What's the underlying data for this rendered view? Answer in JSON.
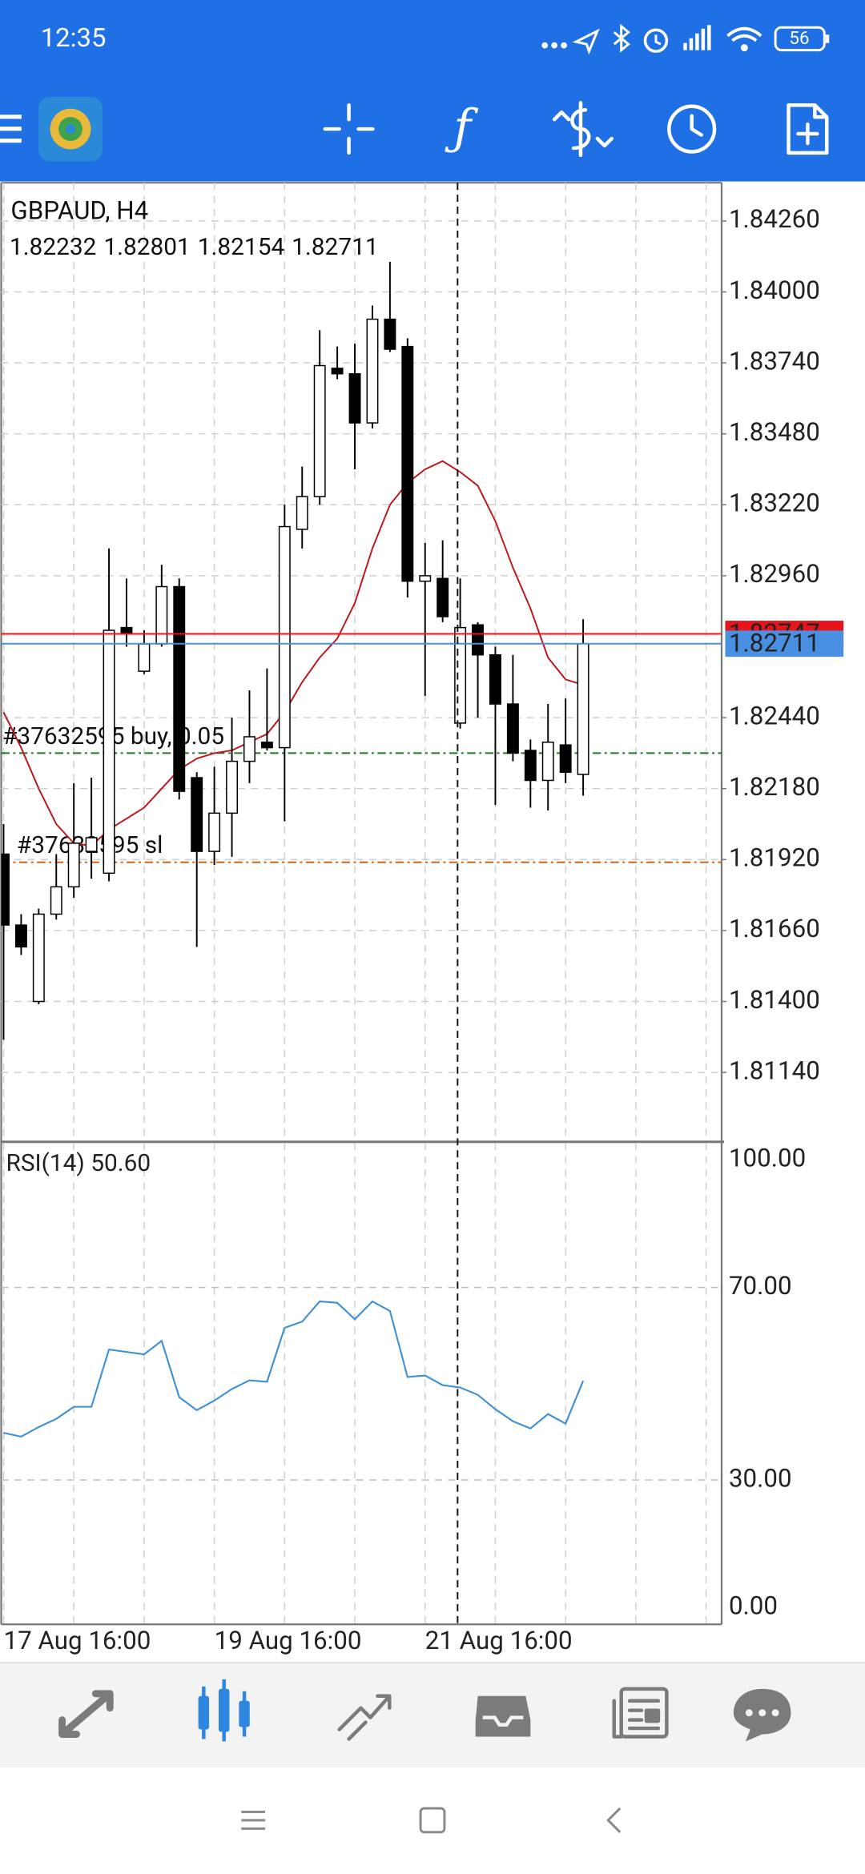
{
  "status_bar": {
    "time": "12:35",
    "battery": "56"
  },
  "chart_data": [
    {
      "type": "candlestick",
      "title": "GBPAUD, H4",
      "categories": [
        "17 Aug 16:00",
        null,
        null,
        null,
        null,
        null,
        null,
        null,
        null,
        null,
        null,
        null,
        "19 Aug 16:00",
        null,
        null,
        null,
        null,
        null,
        null,
        null,
        null,
        null,
        null,
        null,
        "21 Aug 16:00",
        null,
        null,
        null,
        null,
        null,
        null,
        null,
        null,
        null
      ],
      "open": [
        1.8194,
        1.8168,
        1.814,
        1.8172,
        1.8182,
        1.8195,
        1.8187,
        1.8277,
        1.8261,
        1.8271,
        1.8292,
        1.8222,
        1.8195,
        1.8209,
        1.8228,
        1.8235,
        1.8233,
        1.8313,
        1.8325,
        1.8372,
        1.837,
        1.8352,
        1.839,
        1.838,
        1.8294,
        1.8295,
        1.8242,
        1.8278,
        1.8267,
        1.8249,
        1.8232,
        1.8221,
        1.8234,
        1.82232
      ],
      "high": [
        1.8205,
        1.8172,
        1.8174,
        1.8194,
        1.822,
        1.8222,
        1.8306,
        1.8295,
        1.8276,
        1.83,
        1.8295,
        1.8224,
        1.8226,
        1.8244,
        1.8254,
        1.8262,
        1.8322,
        1.8336,
        1.8386,
        1.838,
        1.8381,
        1.8395,
        1.8411,
        1.8383,
        1.8308,
        1.8309,
        1.8295,
        1.8279,
        1.827,
        1.8267,
        1.8236,
        1.8249,
        1.8251,
        1.82801
      ],
      "low": [
        1.8126,
        1.8157,
        1.8139,
        1.817,
        1.8178,
        1.8185,
        1.8184,
        1.827,
        1.826,
        1.827,
        1.8214,
        1.816,
        1.819,
        1.8193,
        1.822,
        1.8232,
        1.8206,
        1.8306,
        1.8322,
        1.8368,
        1.8335,
        1.835,
        1.8378,
        1.8288,
        1.8252,
        1.8279,
        1.824,
        1.8244,
        1.8212,
        1.8228,
        1.8211,
        1.821,
        1.822,
        1.82154
      ],
      "close": [
        1.8168,
        1.816,
        1.8172,
        1.8182,
        1.8198,
        1.82,
        1.8276,
        1.8275,
        1.8271,
        1.8292,
        1.8217,
        1.8195,
        1.8209,
        1.8228,
        1.8237,
        1.8233,
        1.8314,
        1.8325,
        1.8373,
        1.837,
        1.8352,
        1.839,
        1.8379,
        1.8294,
        1.8296,
        1.8281,
        1.8277,
        1.8267,
        1.8249,
        1.8231,
        1.8221,
        1.8235,
        1.8224,
        1.82711
      ],
      "up_color": "#ffffff",
      "down_color": "#000000",
      "moving_average": {
        "color": "#c0141c",
        "values": [
          1.8246,
          1.8233,
          1.8218,
          1.8205,
          1.8198,
          1.8197,
          1.8203,
          1.8207,
          1.8211,
          1.8218,
          1.8225,
          1.8229,
          1.8231,
          1.8232,
          1.8235,
          1.8238,
          1.8246,
          1.8257,
          1.8266,
          1.8273,
          1.8286,
          1.8306,
          1.8322,
          1.833,
          1.8335,
          1.8338,
          1.8334,
          1.8329,
          1.8316,
          1.8299,
          1.8284,
          1.8266,
          1.8258,
          1.8256
        ]
      },
      "price_lines": [
        {
          "value": 1.82747,
          "color": "#e8141c"
        },
        {
          "value": 1.82711,
          "color": "#4a90e2"
        }
      ],
      "orders": [
        {
          "label": "#37632595 buy, 0.05",
          "value": 1.8231,
          "color": "#1e7a1e"
        },
        {
          "label": "#37632595 sl",
          "value": 1.8191,
          "color": "#d2691e"
        }
      ],
      "ylim": [
        1.8089,
        1.844
      ],
      "yticks": [
        {
          "value": 1.8426,
          "label": "1.84260"
        },
        {
          "value": 1.84,
          "label": "1.84000"
        },
        {
          "value": 1.8374,
          "label": "1.83740"
        },
        {
          "value": 1.8348,
          "label": "1.83480"
        },
        {
          "value": 1.8322,
          "label": "1.83220"
        },
        {
          "value": 1.8296,
          "label": "1.82960"
        },
        {
          "value": 1.8244,
          "label": "1.82440"
        },
        {
          "value": 1.8218,
          "label": "1.82180"
        },
        {
          "value": 1.8192,
          "label": "1.81920"
        },
        {
          "value": 1.8166,
          "label": "1.81660"
        },
        {
          "value": 1.814,
          "label": "1.81400"
        },
        {
          "value": 1.8114,
          "label": "1.81140"
        }
      ],
      "grid": true
    },
    {
      "type": "line",
      "title": "RSI(14) 50.60",
      "series": [
        {
          "color": "#3d8fd6",
          "values": [
            39.8,
            39.0,
            41.0,
            42.7,
            45.2,
            45.2,
            57.1,
            56.6,
            56.1,
            58.9,
            47.2,
            44.5,
            46.5,
            48.9,
            50.7,
            50.4,
            61.6,
            62.9,
            67.1,
            66.8,
            63.4,
            67.1,
            65.1,
            51.4,
            51.7,
            49.7,
            49.2,
            47.7,
            44.7,
            42.2,
            40.7,
            43.7,
            41.7,
            50.6
          ]
        }
      ],
      "ylim": [
        0,
        100
      ],
      "yticks": [
        {
          "value": 100,
          "label": "100.00"
        },
        {
          "value": 70,
          "label": "70.00"
        },
        {
          "value": 30,
          "label": "30.00"
        },
        {
          "value": 0,
          "label": "0.00"
        }
      ],
      "grid": true
    }
  ]
}
